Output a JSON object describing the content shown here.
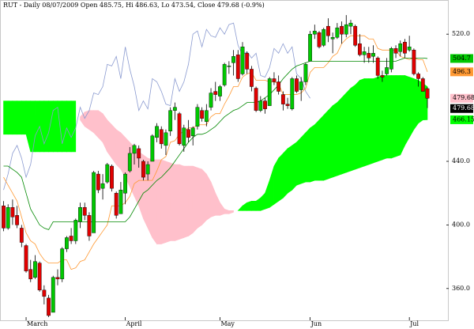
{
  "chart_data": {
    "type": "candlestick",
    "title": "RUT - Daily 08/07/2009 Open 485.75, Hi 486.63, Lo 473.54, Close 479.68 (-0.9%)",
    "categories": [
      null,
      null,
      null,
      null,
      null,
      "March",
      null,
      null,
      null,
      null,
      null,
      null,
      null,
      null,
      null,
      null,
      null,
      null,
      null,
      null,
      null,
      null,
      null,
      null,
      null,
      null,
      null,
      "April",
      null,
      null,
      null,
      null,
      null,
      null,
      null,
      null,
      null,
      null,
      null,
      null,
      null,
      null,
      null,
      null,
      null,
      null,
      null,
      null,
      "May",
      null,
      null,
      null,
      null,
      null,
      null,
      null,
      null,
      null,
      null,
      null,
      null,
      null,
      null,
      null,
      null,
      null,
      null,
      null,
      "Jun",
      null,
      null,
      null,
      null,
      null,
      null,
      null,
      null,
      null,
      null,
      null,
      null,
      null,
      null,
      null,
      null,
      null,
      null,
      null,
      null,
      null,
      "Jul",
      null,
      null,
      null,
      null
    ],
    "candles": [
      [
        412,
        415,
        396,
        398
      ],
      [
        398,
        413,
        397,
        411
      ],
      [
        411,
        416,
        400,
        405
      ],
      [
        406,
        412,
        398,
        400
      ],
      [
        398,
        400,
        386,
        389
      ],
      [
        387,
        388,
        370,
        371
      ],
      [
        372,
        378,
        364,
        366
      ],
      [
        367,
        381,
        366,
        377
      ],
      [
        376,
        377,
        358,
        359
      ],
      [
        359,
        362,
        350,
        355
      ],
      [
        354,
        356,
        342,
        343
      ],
      [
        345,
        368,
        345,
        367
      ],
      [
        367,
        372,
        362,
        366
      ],
      [
        366,
        386,
        364,
        385
      ],
      [
        385,
        393,
        383,
        392
      ],
      [
        393,
        398,
        388,
        390
      ],
      [
        390,
        404,
        388,
        403
      ],
      [
        402,
        414,
        398,
        411
      ],
      [
        411,
        414,
        403,
        406
      ],
      [
        406,
        408,
        390,
        393
      ],
      [
        395,
        434,
        395,
        433
      ],
      [
        432,
        434,
        420,
        422
      ],
      [
        423,
        432,
        416,
        426
      ],
      [
        427,
        439,
        426,
        438
      ],
      [
        437,
        438,
        421,
        423
      ],
      [
        420,
        421,
        404,
        406
      ],
      [
        407,
        427,
        407,
        422
      ],
      [
        420,
        433,
        413,
        432
      ],
      [
        434,
        449,
        433,
        445
      ],
      [
        445,
        451,
        438,
        450
      ],
      [
        448,
        450,
        436,
        442
      ],
      [
        440,
        441,
        428,
        430
      ],
      [
        432,
        440,
        428,
        438
      ],
      [
        440,
        457,
        440,
        456
      ],
      [
        455,
        464,
        452,
        462
      ],
      [
        460,
        462,
        448,
        451
      ],
      [
        450,
        460,
        444,
        458
      ],
      [
        459,
        474,
        456,
        472
      ],
      [
        472,
        477,
        466,
        474
      ],
      [
        470,
        471,
        450,
        451
      ],
      [
        450,
        463,
        446,
        461
      ],
      [
        460,
        466,
        452,
        455
      ],
      [
        456,
        462,
        450,
        461
      ],
      [
        462,
        476,
        460,
        474
      ],
      [
        472,
        474,
        465,
        467
      ],
      [
        465,
        476,
        462,
        472
      ],
      [
        474,
        486,
        472,
        483
      ],
      [
        484,
        490,
        478,
        482
      ],
      [
        481,
        488,
        478,
        487
      ],
      [
        488,
        502,
        487,
        501
      ],
      [
        500,
        503,
        495,
        500
      ],
      [
        502,
        510,
        494,
        506
      ],
      [
        507,
        510,
        490,
        492
      ],
      [
        495,
        515,
        494,
        512
      ],
      [
        508,
        509,
        495,
        498
      ],
      [
        498,
        500,
        484,
        487
      ],
      [
        486,
        487,
        471,
        472
      ],
      [
        472,
        481,
        471,
        478
      ],
      [
        478,
        480,
        470,
        473
      ],
      [
        475,
        493,
        475,
        492
      ],
      [
        492,
        496,
        488,
        490
      ],
      [
        490,
        494,
        482,
        484
      ],
      [
        482,
        484,
        472,
        476
      ],
      [
        476,
        480,
        473,
        475
      ],
      [
        473,
        493,
        472,
        492
      ],
      [
        492,
        494,
        483,
        484
      ],
      [
        485,
        493,
        478,
        490
      ],
      [
        490,
        502,
        488,
        501
      ],
      [
        503,
        522,
        503,
        520
      ],
      [
        520,
        526,
        517,
        522
      ],
      [
        521,
        522,
        511,
        512
      ],
      [
        513,
        524,
        512,
        523
      ],
      [
        525,
        530,
        515,
        519
      ],
      [
        517,
        521,
        508,
        518
      ],
      [
        518,
        527,
        517,
        524
      ],
      [
        525,
        528,
        514,
        520
      ],
      [
        520,
        532,
        518,
        526
      ],
      [
        525,
        529,
        520,
        527
      ],
      [
        525,
        526,
        512,
        513
      ],
      [
        514,
        520,
        506,
        507
      ],
      [
        507,
        512,
        502,
        509
      ],
      [
        508,
        512,
        502,
        505
      ],
      [
        506,
        513,
        502,
        508
      ],
      [
        505,
        506,
        492,
        494
      ],
      [
        494,
        497,
        490,
        493
      ],
      [
        495,
        505,
        494,
        499
      ],
      [
        498,
        512,
        496,
        511
      ],
      [
        511,
        513,
        505,
        508
      ],
      [
        509,
        516,
        506,
        514
      ],
      [
        515,
        517,
        505,
        508
      ],
      [
        510,
        519,
        509,
        512
      ],
      [
        510,
        511,
        494,
        495
      ],
      [
        495,
        496,
        487,
        492
      ],
      [
        492,
        493,
        484,
        484
      ],
      [
        485.75,
        486.63,
        473.54,
        479.68
      ]
    ],
    "up_color": "#00c800",
    "down_color": "#e00000",
    "lines": [
      {
        "color": "#8a9ad0",
        "values": [
          422,
          432,
          445,
          450,
          442,
          430,
          438,
          456,
          462,
          451,
          458,
          472,
          474,
          451,
          461,
          455,
          461,
          474,
          467,
          472,
          483,
          482,
          487,
          501,
          500,
          506,
          492,
          512,
          498,
          487,
          472,
          478,
          473,
          492,
          490,
          484,
          476,
          475,
          492,
          484,
          490,
          501,
          520,
          522,
          512,
          523,
          519,
          518,
          524,
          520,
          526,
          527,
          513,
          507,
          509,
          505,
          508,
          494,
          493,
          499,
          511,
          508,
          514,
          508,
          512,
          495,
          492,
          484,
          479.68,
          null,
          null,
          null,
          null,
          null,
          null,
          null,
          null,
          null,
          null,
          null,
          null,
          null,
          null,
          null,
          null,
          null,
          null,
          null,
          null,
          null,
          null,
          null,
          null,
          null,
          null
        ]
      },
      {
        "color": "#ff9933",
        "values": [
          430,
          425,
          420,
          415,
          405,
          395,
          390,
          388,
          382,
          378,
          376,
          376,
          376,
          378,
          378,
          372,
          373,
          377,
          378,
          383,
          388,
          392,
          396,
          400,
          412,
          412,
          412,
          414,
          418,
          426,
          428,
          428,
          428,
          428,
          434,
          441,
          443,
          452,
          453,
          457,
          459,
          461,
          461,
          463,
          463,
          463,
          468,
          470,
          470,
          476,
          481,
          487,
          487,
          493,
          495,
          496,
          491,
          491,
          491,
          490,
          490,
          489,
          482,
          482,
          482,
          482,
          483,
          486,
          496,
          499,
          499,
          499,
          502,
          506,
          508,
          514,
          517,
          519,
          519,
          519,
          519,
          517,
          517,
          511,
          510,
          510,
          510,
          510,
          506,
          505,
          504,
          505,
          504,
          504,
          496.3
        ]
      },
      {
        "color": "#008800",
        "values": [
          437,
          437,
          435,
          433,
          430,
          420,
          410,
          405,
          400,
          398,
          397,
          402,
          402,
          402,
          402,
          402,
          402,
          402,
          402,
          402,
          402,
          402,
          402,
          402,
          402,
          402,
          402,
          402,
          405,
          410,
          415,
          420,
          422,
          425,
          428,
          430,
          433,
          436,
          440,
          444,
          448,
          452,
          455,
          457,
          457,
          458,
          460,
          462,
          465,
          468,
          470,
          472,
          473,
          475,
          477,
          477,
          477,
          478,
          480,
          482,
          485,
          488,
          492,
          495,
          498,
          500,
          501,
          502,
          503,
          503,
          503,
          503,
          503,
          503,
          503,
          503,
          503,
          503,
          503,
          503,
          503,
          503,
          503,
          503,
          503,
          503,
          503,
          503,
          504,
          505,
          505,
          505,
          505,
          505,
          504.7
        ]
      }
    ],
    "cloud": {
      "up_color": "#00ff00",
      "down_color": "#ffc0cb",
      "senkou_a": [
        478,
        478,
        478,
        478,
        478,
        478,
        478,
        478,
        478,
        478,
        478,
        478,
        478,
        478,
        478,
        478,
        478,
        466,
        462,
        460,
        458,
        455,
        452,
        446,
        442,
        438,
        435,
        430,
        424,
        418,
        412,
        404,
        398,
        392,
        388,
        388,
        389,
        390,
        390,
        391,
        392,
        393,
        395,
        398,
        400,
        403,
        405,
        406,
        406,
        407,
        407,
        408,
        409,
        412,
        414,
        415,
        415,
        417,
        420,
        428,
        437,
        442,
        445,
        448,
        450,
        452,
        455,
        458,
        461,
        463,
        466,
        469,
        472,
        475,
        477,
        480,
        483,
        486,
        488,
        491,
        492,
        492,
        492,
        493,
        494,
        494,
        494,
        494,
        494,
        494,
        493,
        492,
        491,
        489,
        487
      ],
      "senkou_b": [
        457,
        457,
        457,
        457,
        457,
        457,
        446,
        446,
        446,
        446,
        446,
        446,
        446,
        446,
        446,
        446,
        446,
        468,
        471,
        472,
        472,
        472,
        470,
        466,
        463,
        460,
        458,
        455,
        452,
        449,
        446,
        444,
        442,
        441,
        441,
        441,
        440,
        439,
        438,
        438,
        437,
        437,
        437,
        436,
        435,
        432,
        427,
        420,
        414,
        410,
        409,
        409,
        409,
        409,
        409,
        409,
        409,
        409,
        410,
        411,
        413,
        415,
        417,
        420,
        422,
        425,
        426,
        427,
        427,
        428,
        428,
        428,
        429,
        430,
        431,
        432,
        433,
        434,
        435,
        436,
        437,
        438,
        439,
        440,
        441,
        442,
        442,
        443,
        444,
        450,
        455,
        460,
        464,
        466,
        466.155
      ]
    },
    "price_labels": [
      {
        "value": 504.7,
        "bg": "#00c800",
        "fg": "#000000"
      },
      {
        "value": 496.3,
        "bg": "#ff9933",
        "fg": "#000000"
      },
      {
        "value": 479.68,
        "bg": "#ffc0cb",
        "fg": "#000000"
      },
      {
        "value": 479.68,
        "bg": "#000000",
        "fg": "#ffffff"
      },
      {
        "value": 466.155,
        "bg": "#00ff00",
        "fg": "#000000"
      }
    ],
    "ylim": [
      340,
      539
    ],
    "yticks": [
      {
        "value": 360,
        "label": "360.0"
      },
      {
        "value": 400,
        "label": "400.0"
      },
      {
        "value": 440,
        "label": "440.0"
      },
      {
        "value": 520,
        "label": "520.0"
      }
    ]
  }
}
